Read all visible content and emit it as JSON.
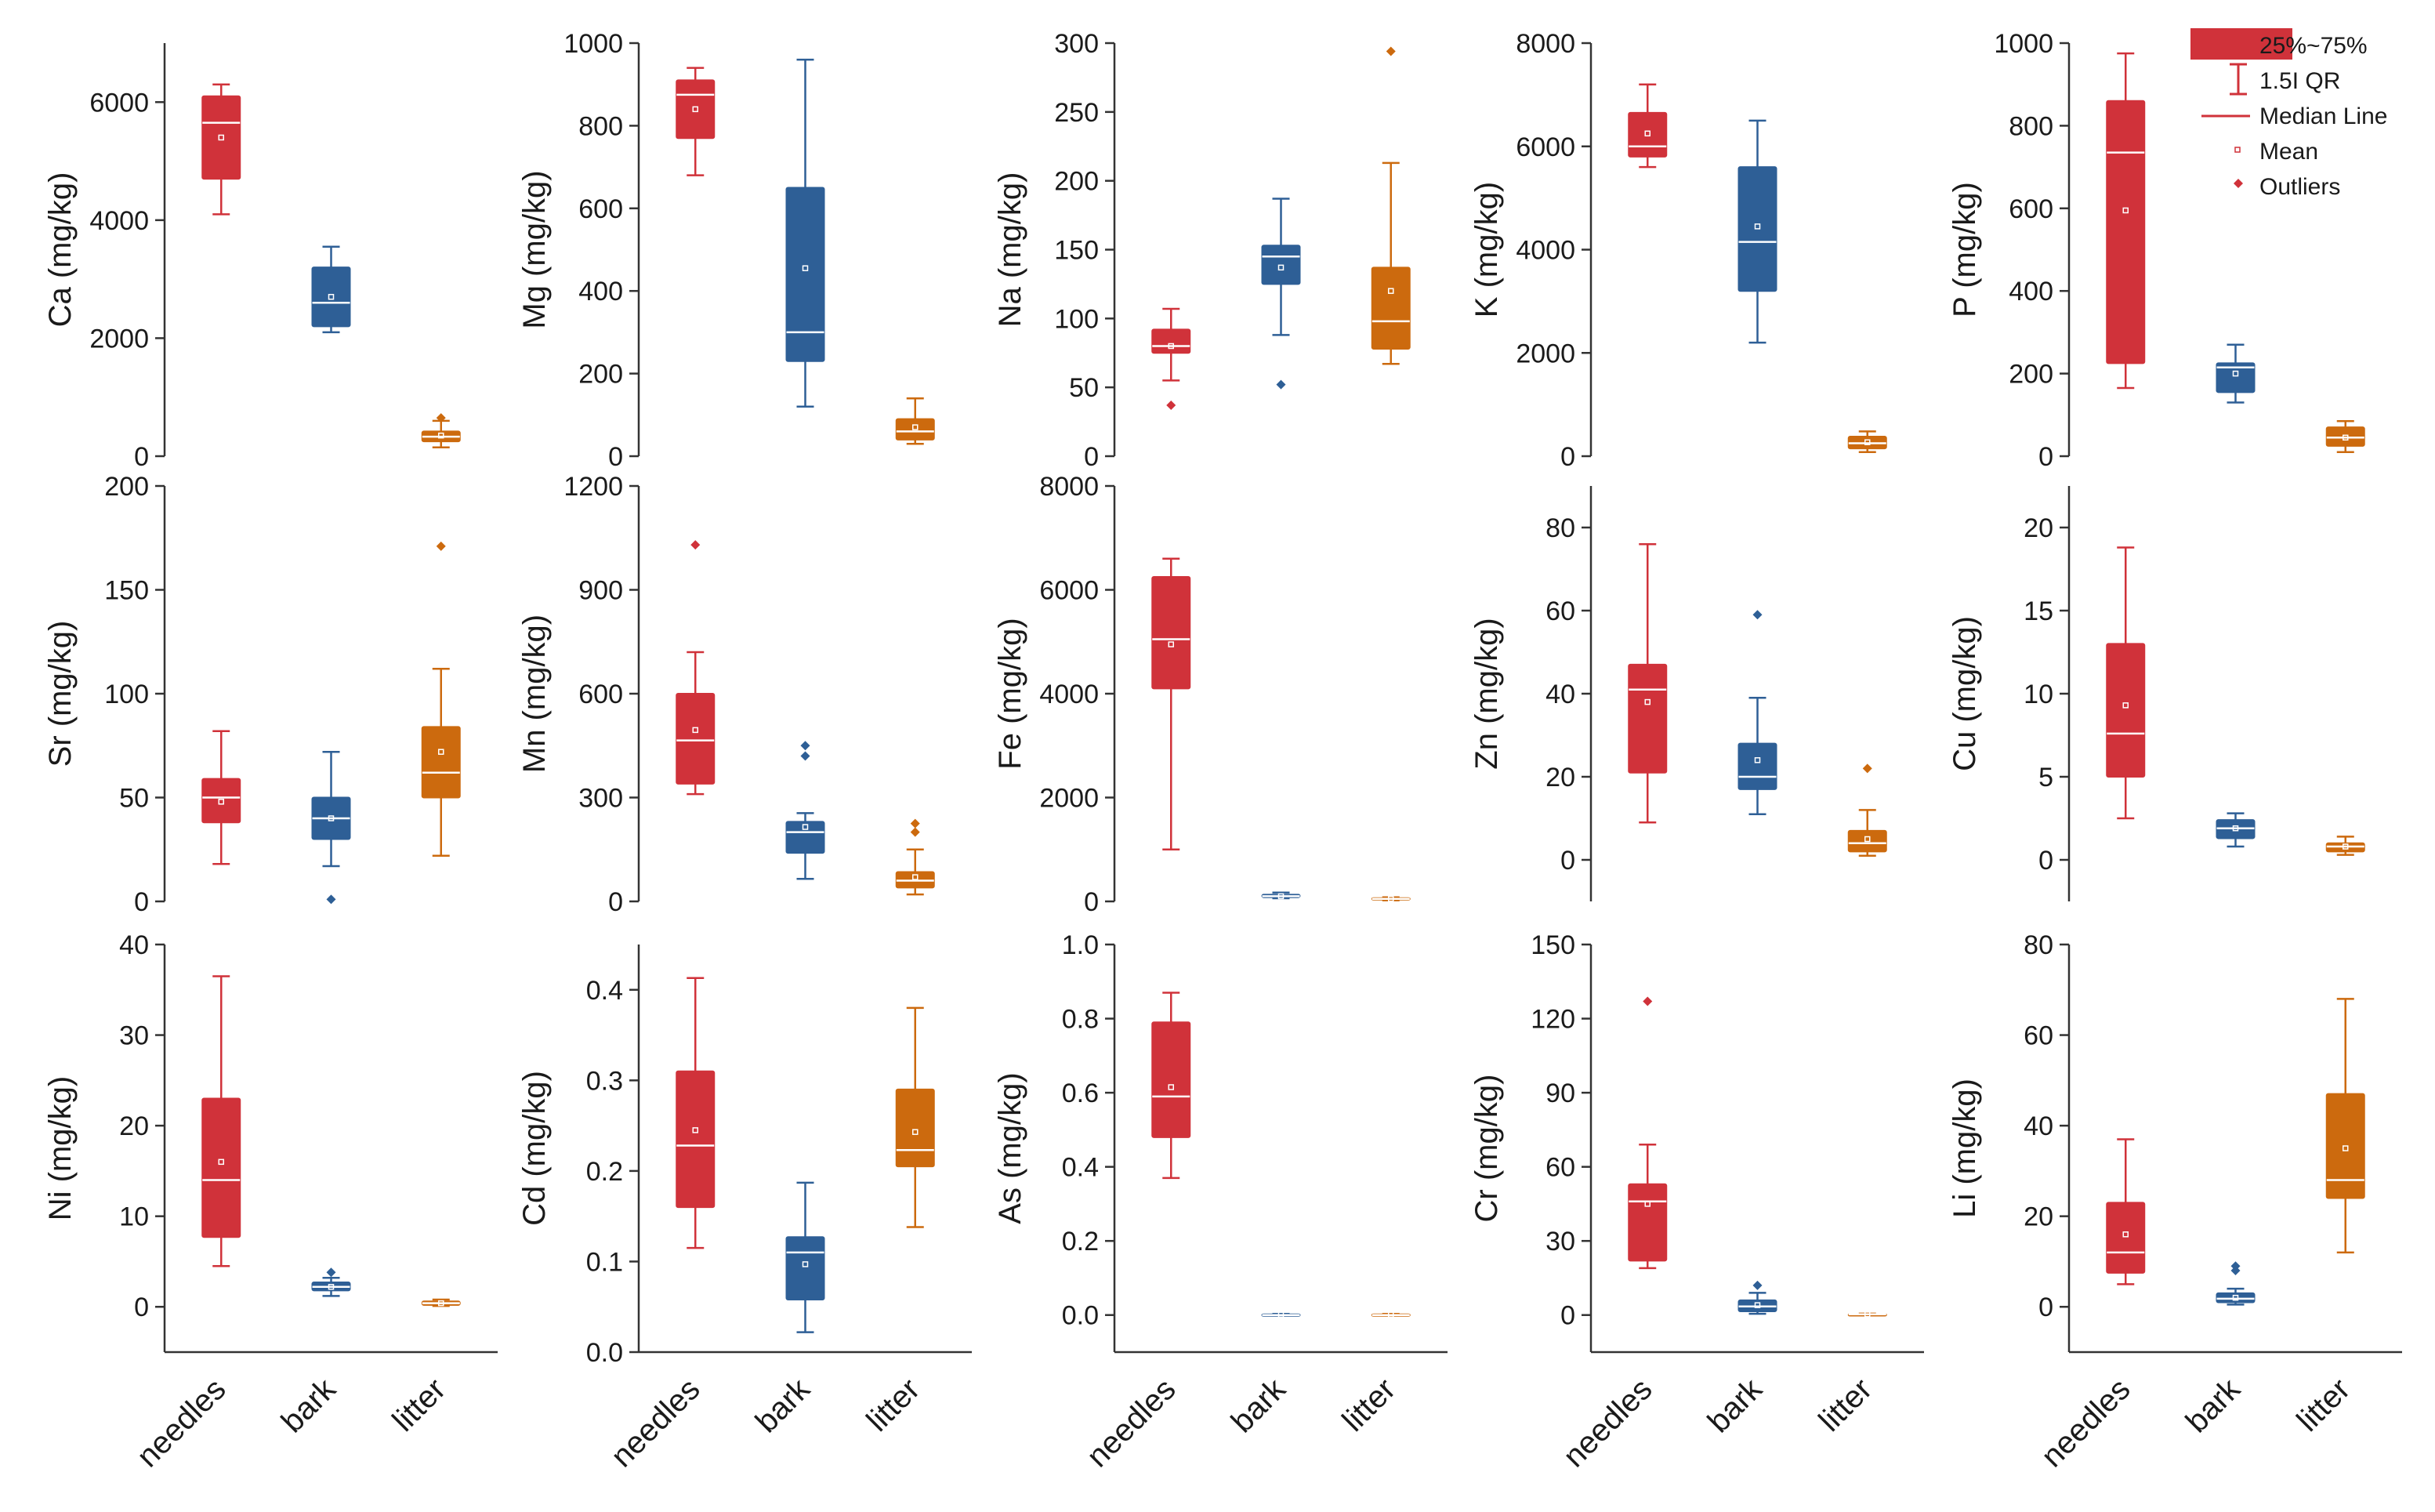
{
  "chart_data": {
    "type": "box",
    "layout": "3 rows x 5 columns",
    "categories": [
      "needles",
      "bark",
      "litter"
    ],
    "colors": {
      "needles": "#d0323a",
      "bark": "#2e5f96",
      "litter": "#cc6a0e"
    },
    "legend": {
      "placement": "top-right",
      "entries": [
        {
          "symbol": "box",
          "label": "25%~75%"
        },
        {
          "symbol": "whisker",
          "label": "1.5I QR"
        },
        {
          "symbol": "median",
          "label": "Median Line"
        },
        {
          "symbol": "mean",
          "label": "Mean"
        },
        {
          "symbol": "outlier",
          "label": "Outliers"
        }
      ]
    },
    "panels": [
      {
        "ylabel": "Ca (mg/kg)",
        "ylim": [
          0,
          7000
        ],
        "yticks": [
          0,
          2000,
          4000,
          6000
        ],
        "tick_labels": [
          "0",
          "2000",
          "4000",
          "6000"
        ],
        "x_labels": false,
        "boxes": [
          {
            "category": "needles",
            "whisker_low": 4100,
            "q1": 4700,
            "median": 5650,
            "q3": 6100,
            "whisker_high": 6300,
            "mean": 5400,
            "outliers": []
          },
          {
            "category": "bark",
            "whisker_low": 2100,
            "q1": 2200,
            "median": 2600,
            "q3": 3200,
            "whisker_high": 3550,
            "mean": 2700,
            "outliers": []
          },
          {
            "category": "litter",
            "whisker_low": 150,
            "q1": 250,
            "median": 330,
            "q3": 420,
            "whisker_high": 600,
            "mean": 350,
            "outliers": [
              650
            ]
          }
        ]
      },
      {
        "ylabel": "Mg (mg/kg)",
        "ylim": [
          0,
          1000
        ],
        "yticks": [
          0,
          200,
          400,
          600,
          800,
          1000
        ],
        "tick_labels": [
          "0",
          "200",
          "400",
          "600",
          "800",
          "1000"
        ],
        "x_labels": false,
        "boxes": [
          {
            "category": "needles",
            "whisker_low": 680,
            "q1": 770,
            "median": 875,
            "q3": 910,
            "whisker_high": 940,
            "mean": 840,
            "outliers": []
          },
          {
            "category": "bark",
            "whisker_low": 120,
            "q1": 230,
            "median": 300,
            "q3": 650,
            "whisker_high": 960,
            "mean": 455,
            "outliers": []
          },
          {
            "category": "litter",
            "whisker_low": 30,
            "q1": 40,
            "median": 60,
            "q3": 90,
            "whisker_high": 140,
            "mean": 70,
            "outliers": []
          }
        ]
      },
      {
        "ylabel": "Na (mg/kg)",
        "ylim": [
          0,
          300
        ],
        "yticks": [
          0,
          50,
          100,
          150,
          200,
          250,
          300
        ],
        "tick_labels": [
          "0",
          "50",
          "100",
          "150",
          "200",
          "250",
          "300"
        ],
        "x_labels": false,
        "boxes": [
          {
            "category": "needles",
            "whisker_low": 55,
            "q1": 75,
            "median": 80,
            "q3": 92,
            "whisker_high": 107,
            "mean": 80,
            "outliers": [
              37
            ]
          },
          {
            "category": "bark",
            "whisker_low": 88,
            "q1": 125,
            "median": 145,
            "q3": 153,
            "whisker_high": 187,
            "mean": 137,
            "outliers": [
              52
            ]
          },
          {
            "category": "litter",
            "whisker_low": 67,
            "q1": 78,
            "median": 98,
            "q3": 137,
            "whisker_high": 213,
            "mean": 120,
            "outliers": [
              294
            ]
          }
        ]
      },
      {
        "ylabel": "K (mg/kg)",
        "ylim": [
          0,
          8000
        ],
        "yticks": [
          0,
          2000,
          4000,
          6000,
          8000
        ],
        "tick_labels": [
          "0",
          "2000",
          "4000",
          "6000",
          "8000"
        ],
        "x_labels": false,
        "boxes": [
          {
            "category": "needles",
            "whisker_low": 5600,
            "q1": 5800,
            "median": 6000,
            "q3": 6650,
            "whisker_high": 7200,
            "mean": 6250,
            "outliers": []
          },
          {
            "category": "bark",
            "whisker_low": 2200,
            "q1": 3200,
            "median": 4150,
            "q3": 5600,
            "whisker_high": 6500,
            "mean": 4450,
            "outliers": []
          },
          {
            "category": "litter",
            "whisker_low": 80,
            "q1": 150,
            "median": 250,
            "q3": 380,
            "whisker_high": 480,
            "mean": 270,
            "outliers": []
          }
        ]
      },
      {
        "ylabel": "P (mg/kg)",
        "ylim": [
          0,
          1000
        ],
        "yticks": [
          0,
          200,
          400,
          600,
          800,
          1000
        ],
        "tick_labels": [
          "0",
          "200",
          "400",
          "600",
          "800",
          "1000"
        ],
        "x_labels": false,
        "boxes": [
          {
            "category": "needles",
            "whisker_low": 165,
            "q1": 225,
            "median": 735,
            "q3": 860,
            "whisker_high": 975,
            "mean": 595,
            "outliers": []
          },
          {
            "category": "bark",
            "whisker_low": 130,
            "q1": 155,
            "median": 215,
            "q3": 225,
            "whisker_high": 270,
            "mean": 200,
            "outliers": []
          },
          {
            "category": "litter",
            "whisker_low": 10,
            "q1": 25,
            "median": 45,
            "q3": 70,
            "whisker_high": 85,
            "mean": 45,
            "outliers": []
          }
        ]
      },
      {
        "ylabel": "Sr (mg/kg)",
        "ylim": [
          0,
          200
        ],
        "yticks": [
          0,
          50,
          100,
          150,
          200
        ],
        "tick_labels": [
          "0",
          "50",
          "100",
          "150",
          "200"
        ],
        "x_labels": false,
        "boxes": [
          {
            "category": "needles",
            "whisker_low": 18,
            "q1": 38,
            "median": 50,
            "q3": 59,
            "whisker_high": 82,
            "mean": 48,
            "outliers": []
          },
          {
            "category": "bark",
            "whisker_low": 17,
            "q1": 30,
            "median": 40,
            "q3": 50,
            "whisker_high": 72,
            "mean": 40,
            "outliers": [
              1
            ]
          },
          {
            "category": "litter",
            "whisker_low": 22,
            "q1": 50,
            "median": 62,
            "q3": 84,
            "whisker_high": 112,
            "mean": 72,
            "outliers": [
              171
            ]
          }
        ]
      },
      {
        "ylabel": "Mn (mg/kg)",
        "ylim": [
          0,
          1200
        ],
        "yticks": [
          0,
          300,
          600,
          900,
          1200
        ],
        "tick_labels": [
          "0",
          "300",
          "600",
          "900",
          "1200"
        ],
        "x_labels": false,
        "boxes": [
          {
            "category": "needles",
            "whisker_low": 310,
            "q1": 340,
            "median": 465,
            "q3": 600,
            "whisker_high": 720,
            "mean": 495,
            "outliers": [
              1030
            ]
          },
          {
            "category": "bark",
            "whisker_low": 65,
            "q1": 140,
            "median": 200,
            "q3": 230,
            "whisker_high": 255,
            "mean": 215,
            "outliers": [
              420,
              450
            ]
          },
          {
            "category": "litter",
            "whisker_low": 20,
            "q1": 40,
            "median": 60,
            "q3": 85,
            "whisker_high": 150,
            "mean": 70,
            "outliers": [
              200,
              225
            ]
          }
        ]
      },
      {
        "ylabel": "Fe (mg/kg)",
        "ylim": [
          0,
          8000
        ],
        "yticks": [
          0,
          2000,
          4000,
          6000,
          8000
        ],
        "tick_labels": [
          "0",
          "2000",
          "4000",
          "6000",
          "8000"
        ],
        "x_labels": false,
        "boxes": [
          {
            "category": "needles",
            "whisker_low": 1000,
            "q1": 4100,
            "median": 5050,
            "q3": 6250,
            "whisker_high": 6600,
            "mean": 4950,
            "outliers": []
          },
          {
            "category": "bark",
            "whisker_low": 60,
            "q1": 80,
            "median": 100,
            "q3": 130,
            "whisker_high": 170,
            "mean": 100,
            "outliers": []
          },
          {
            "category": "litter",
            "whisker_low": 20,
            "q1": 35,
            "median": 50,
            "q3": 65,
            "whisker_high": 80,
            "mean": 50,
            "outliers": []
          }
        ]
      },
      {
        "ylabel": "Zn (mg/kg)",
        "ylim": [
          -10,
          90
        ],
        "yticks": [
          0,
          20,
          40,
          60,
          80
        ],
        "tick_labels": [
          "0",
          "20",
          "40",
          "60",
          "80"
        ],
        "x_labels": false,
        "boxes": [
          {
            "category": "needles",
            "whisker_low": 9,
            "q1": 21,
            "median": 41,
            "q3": 47,
            "whisker_high": 76,
            "mean": 38,
            "outliers": []
          },
          {
            "category": "bark",
            "whisker_low": 11,
            "q1": 17,
            "median": 20,
            "q3": 28,
            "whisker_high": 39,
            "mean": 24,
            "outliers": [
              59
            ]
          },
          {
            "category": "litter",
            "whisker_low": 1,
            "q1": 2,
            "median": 4,
            "q3": 7,
            "whisker_high": 12,
            "mean": 5,
            "outliers": [
              22
            ]
          }
        ]
      },
      {
        "ylabel": "Cu (mg/kg)",
        "ylim": [
          -2.5,
          22.5
        ],
        "yticks": [
          0,
          5,
          10,
          15,
          20
        ],
        "tick_labels": [
          "0",
          "5",
          "10",
          "15",
          "20"
        ],
        "x_labels": false,
        "boxes": [
          {
            "category": "needles",
            "whisker_low": 2.5,
            "q1": 5,
            "median": 7.6,
            "q3": 13,
            "whisker_high": 18.8,
            "mean": 9.3,
            "outliers": []
          },
          {
            "category": "bark",
            "whisker_low": 0.8,
            "q1": 1.3,
            "median": 1.9,
            "q3": 2.4,
            "whisker_high": 2.8,
            "mean": 1.9,
            "outliers": []
          },
          {
            "category": "litter",
            "whisker_low": 0.3,
            "q1": 0.5,
            "median": 0.8,
            "q3": 1.0,
            "whisker_high": 1.4,
            "mean": 0.8,
            "outliers": []
          }
        ]
      },
      {
        "ylabel": "Ni (mg/kg)",
        "ylim": [
          -5,
          40
        ],
        "yticks": [
          0,
          10,
          20,
          30,
          40
        ],
        "tick_labels": [
          "0",
          "10",
          "20",
          "30",
          "40"
        ],
        "x_labels": true,
        "boxes": [
          {
            "category": "needles",
            "whisker_low": 4.5,
            "q1": 7.7,
            "median": 14,
            "q3": 23,
            "whisker_high": 36.5,
            "mean": 16,
            "outliers": []
          },
          {
            "category": "bark",
            "whisker_low": 1.2,
            "q1": 1.8,
            "median": 2.2,
            "q3": 2.7,
            "whisker_high": 3.2,
            "mean": 2.2,
            "outliers": [
              3.8
            ]
          },
          {
            "category": "litter",
            "whisker_low": 0.1,
            "q1": 0.2,
            "median": 0.4,
            "q3": 0.6,
            "whisker_high": 0.8,
            "mean": 0.4,
            "outliers": []
          }
        ]
      },
      {
        "ylabel": "Cd (mg/kg)",
        "ylim": [
          0,
          0.45
        ],
        "yticks": [
          0,
          0.1,
          0.2,
          0.3,
          0.4
        ],
        "tick_labels": [
          "0.0",
          "0.1",
          "0.2",
          "0.3",
          "0.4"
        ],
        "x_labels": true,
        "boxes": [
          {
            "category": "needles",
            "whisker_low": 0.115,
            "q1": 0.16,
            "median": 0.228,
            "q3": 0.31,
            "whisker_high": 0.413,
            "mean": 0.245,
            "outliers": []
          },
          {
            "category": "bark",
            "whisker_low": 0.022,
            "q1": 0.058,
            "median": 0.11,
            "q3": 0.127,
            "whisker_high": 0.187,
            "mean": 0.097,
            "outliers": []
          },
          {
            "category": "litter",
            "whisker_low": 0.138,
            "q1": 0.205,
            "median": 0.223,
            "q3": 0.29,
            "whisker_high": 0.38,
            "mean": 0.243,
            "outliers": []
          }
        ]
      },
      {
        "ylabel": "As (mg/kg)",
        "ylim": [
          -0.1,
          1.0
        ],
        "yticks": [
          0,
          0.2,
          0.4,
          0.6,
          0.8,
          1.0
        ],
        "tick_labels": [
          "0.0",
          "0.2",
          "0.4",
          "0.6",
          "0.8",
          "1.0"
        ],
        "x_labels": true,
        "boxes": [
          {
            "category": "needles",
            "whisker_low": 0.37,
            "q1": 0.48,
            "median": 0.59,
            "q3": 0.79,
            "whisker_high": 0.87,
            "mean": 0.615,
            "outliers": []
          },
          {
            "category": "bark",
            "whisker_low": 0.0,
            "q1": 0.0,
            "median": 0.0,
            "q3": 0.002,
            "whisker_high": 0.003,
            "mean": 0.001,
            "outliers": []
          },
          {
            "category": "litter",
            "whisker_low": 0.0,
            "q1": 0.0,
            "median": 0.0,
            "q3": 0.002,
            "whisker_high": 0.003,
            "mean": 0.001,
            "outliers": []
          }
        ]
      },
      {
        "ylabel": "Cr (mg/kg)",
        "ylim": [
          -15,
          150
        ],
        "yticks": [
          0,
          30,
          60,
          90,
          120,
          150
        ],
        "tick_labels": [
          "0",
          "30",
          "60",
          "90",
          "120",
          "150"
        ],
        "x_labels": true,
        "boxes": [
          {
            "category": "needles",
            "whisker_low": 19,
            "q1": 22,
            "median": 46,
            "q3": 53,
            "whisker_high": 69,
            "mean": 45,
            "outliers": [
              127
            ]
          },
          {
            "category": "bark",
            "whisker_low": 0.5,
            "q1": 1.5,
            "median": 3.5,
            "q3": 6,
            "whisker_high": 9,
            "mean": 4,
            "outliers": [
              12
            ]
          },
          {
            "category": "litter",
            "whisker_low": 0.1,
            "q1": 0.2,
            "median": 0.3,
            "q3": 0.4,
            "whisker_high": 0.6,
            "mean": 0.3,
            "outliers": []
          }
        ]
      },
      {
        "ylabel": "Li (mg/kg)",
        "ylim": [
          -10,
          80
        ],
        "yticks": [
          0,
          20,
          40,
          60,
          80
        ],
        "tick_labels": [
          "0",
          "20",
          "40",
          "60",
          "80"
        ],
        "x_labels": true,
        "boxes": [
          {
            "category": "needles",
            "whisker_low": 5,
            "q1": 7.5,
            "median": 12,
            "q3": 23,
            "whisker_high": 37,
            "mean": 16,
            "outliers": []
          },
          {
            "category": "bark",
            "whisker_low": 0.5,
            "q1": 1,
            "median": 1.8,
            "q3": 3,
            "whisker_high": 4,
            "mean": 2,
            "outliers": [
              8,
              9
            ]
          },
          {
            "category": "litter",
            "whisker_low": 12,
            "q1": 24,
            "median": 28,
            "q3": 47,
            "whisker_high": 68,
            "mean": 35,
            "outliers": []
          }
        ]
      }
    ]
  }
}
